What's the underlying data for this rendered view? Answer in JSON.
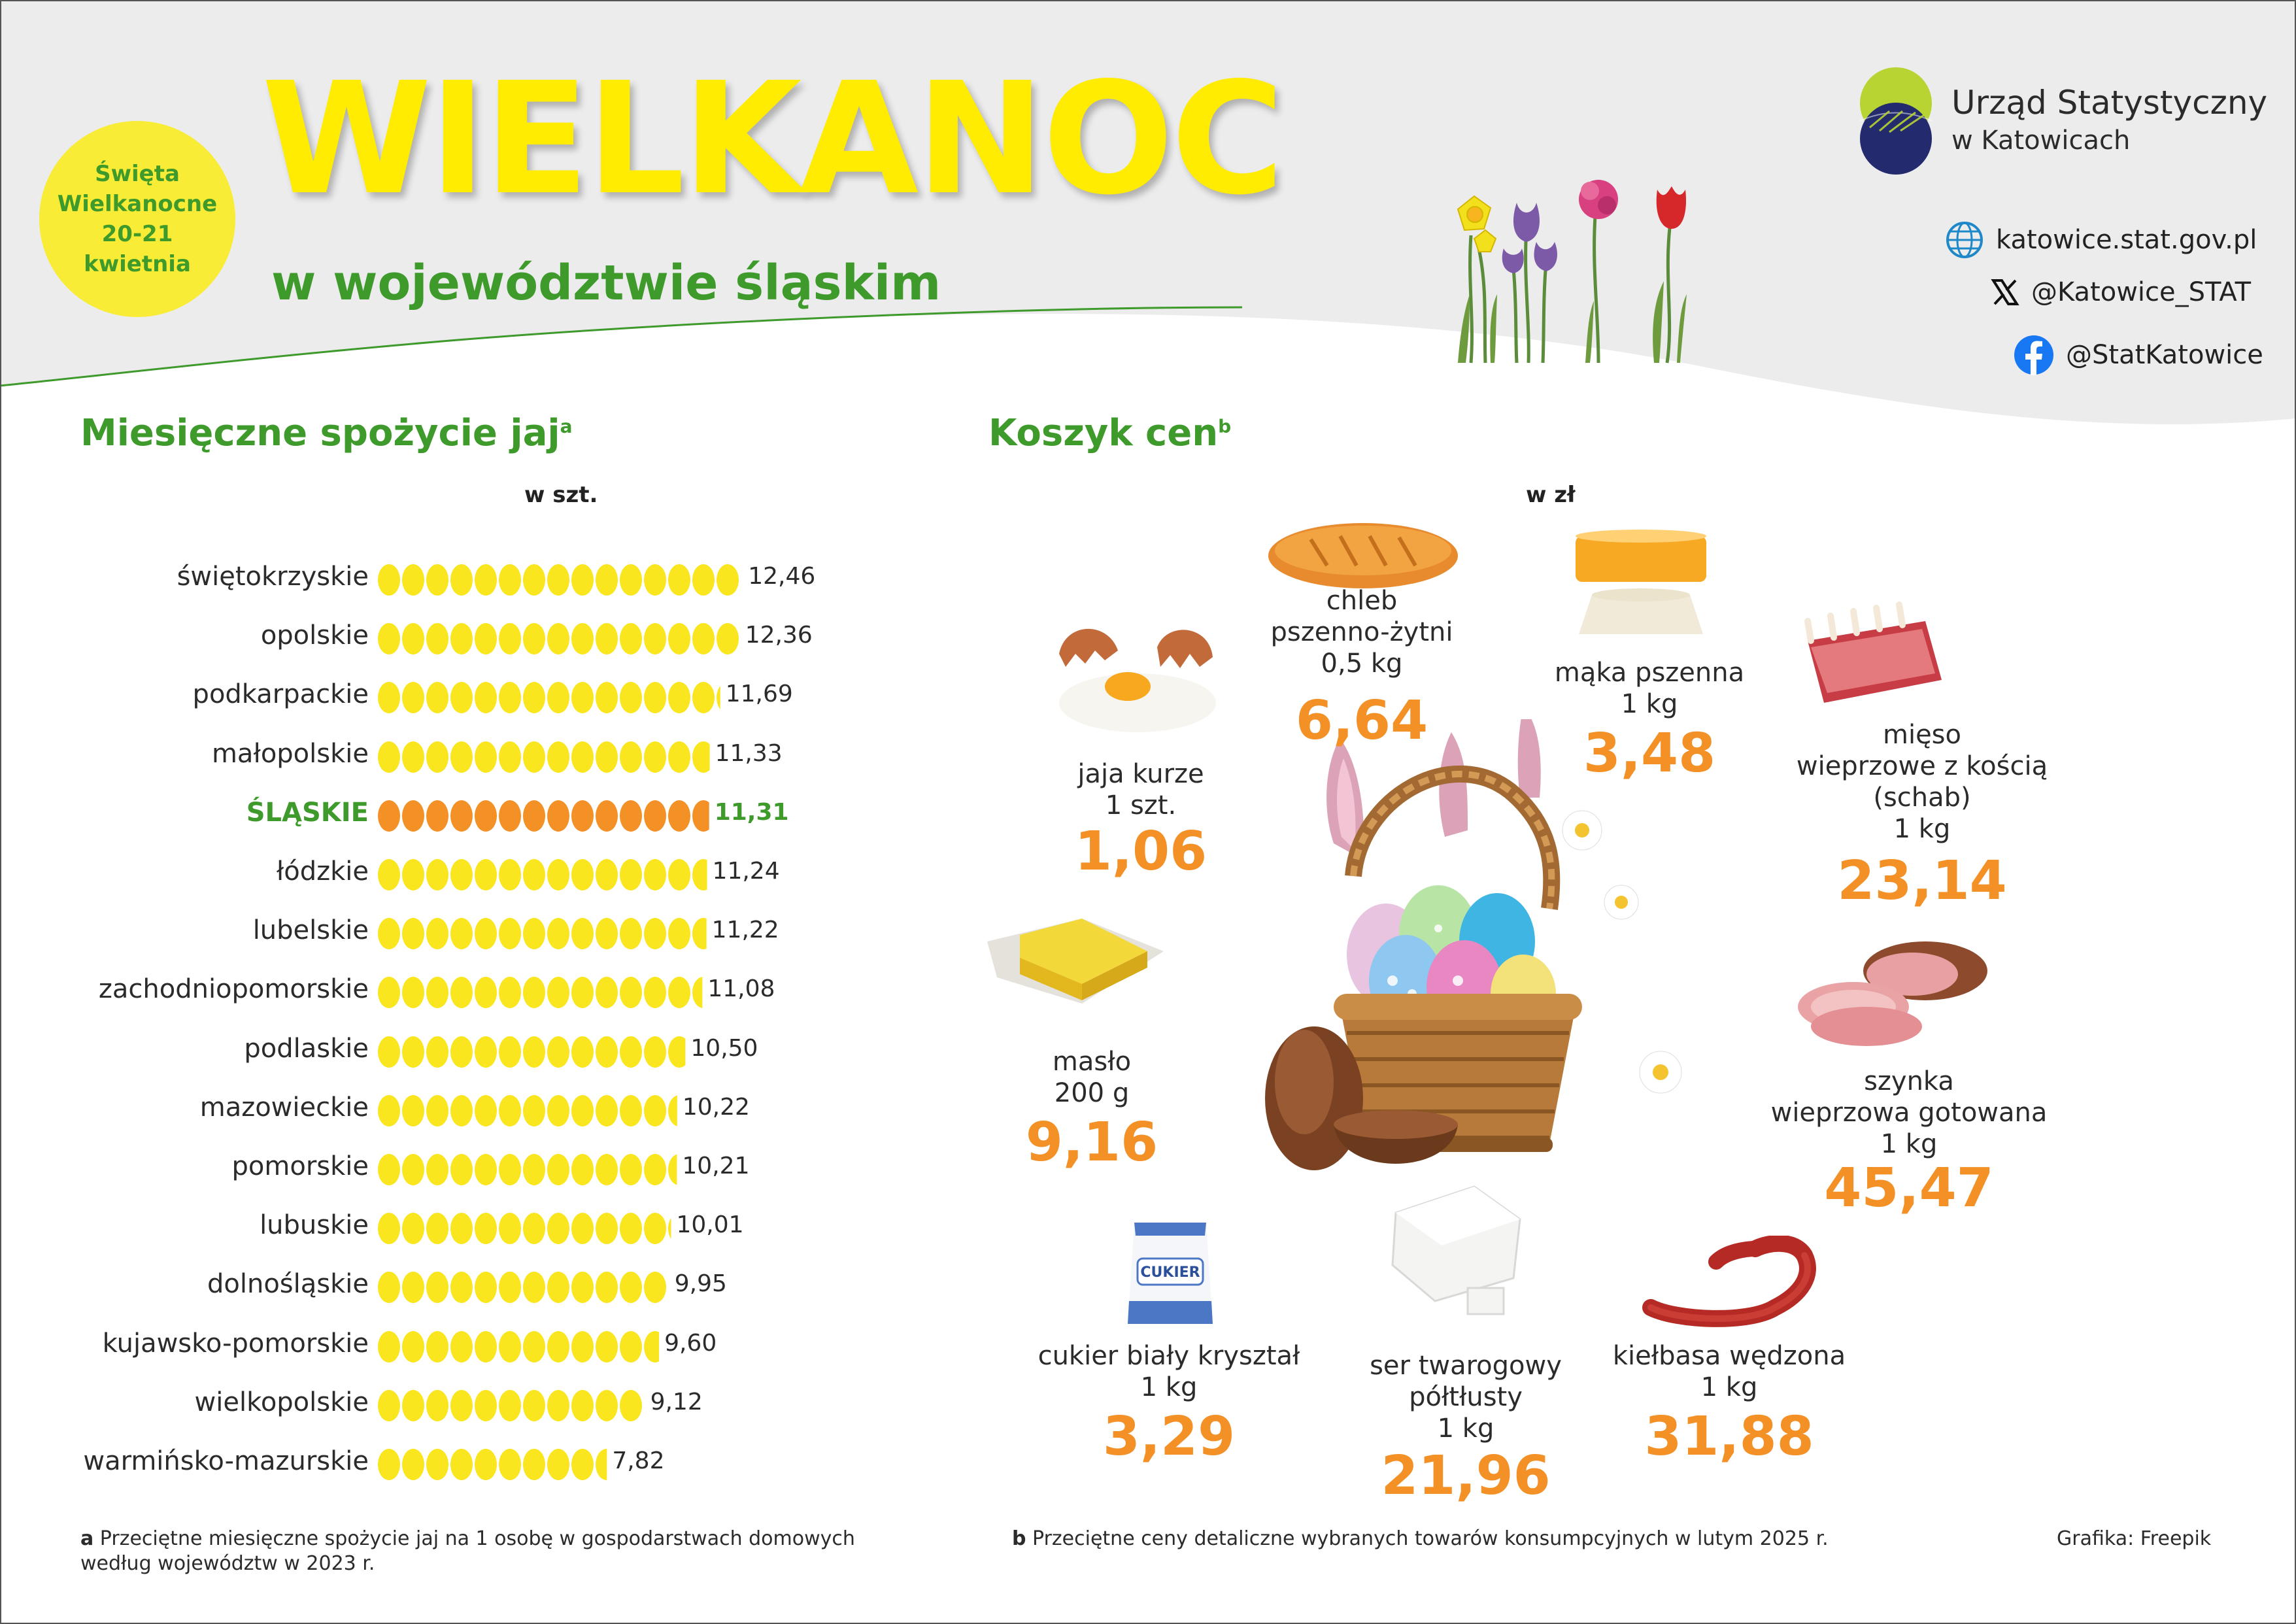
{
  "header": {
    "badge": {
      "line1": "Święta",
      "line2": "Wielkanocne",
      "line3": "20-21",
      "line4": "kwietnia"
    },
    "title": "WIELKANOC",
    "subtitle": "w województwie śląskim"
  },
  "org": {
    "name": "Urząd Statystyczny",
    "sub": "w Katowicach",
    "website": "katowice.stat.gov.pl",
    "x_handle": "@Katowice_STAT",
    "facebook": "@StatKatowice"
  },
  "eggs_section": {
    "title": "Miesięczne spożycie jaj",
    "title_sup": "a",
    "unit": "w szt."
  },
  "basket_section": {
    "title": "Koszyk cen",
    "title_sup": "b",
    "unit": "w zł"
  },
  "chart_data": [
    {
      "type": "bar",
      "title": "Miesięczne spożycie jaj",
      "unit": "w szt.",
      "highlight": "ŚLĄSKIE",
      "colors": {
        "egg": "#f9e61e",
        "highlight": "#f39026"
      },
      "categories": [
        "świętokrzyskie",
        "opolskie",
        "podkarpackie",
        "małopolskie",
        "ŚLĄSKIE",
        "łódzkie",
        "lubelskie",
        "zachodniopomorskie",
        "podlaskie",
        "mazowieckie",
        "pomorskie",
        "lubuskie",
        "dolnośląskie",
        "kujawsko-pomorskie",
        "wielkopolskie",
        "warmińsko-mazurskie"
      ],
      "values": [
        12.46,
        12.36,
        11.69,
        11.33,
        11.31,
        11.24,
        11.22,
        11.08,
        10.5,
        10.22,
        10.21,
        10.01,
        9.95,
        9.6,
        9.12,
        7.82
      ],
      "labels": [
        "12,46",
        "12,36",
        "11,69",
        "11,33",
        "11,31",
        "11,24",
        "11,22",
        "11,08",
        "10,50",
        "10,22",
        "10,21",
        "10,01",
        "9,95",
        "9,60",
        "9,12",
        "7,82"
      ]
    },
    {
      "type": "table",
      "title": "Koszyk cen",
      "unit": "w zł",
      "items": [
        {
          "name": "chleb pszenno-żytni",
          "lines": [
            "chleb",
            "pszenno-żytni",
            "0,5 kg"
          ],
          "price": "6,64"
        },
        {
          "name": "mąka pszenna",
          "lines": [
            "mąka pszenna",
            "1 kg"
          ],
          "price": "3,48"
        },
        {
          "name": "jaja kurze",
          "lines": [
            "jaja kurze",
            "1 szt."
          ],
          "price": "1,06"
        },
        {
          "name": "mięso wieprzowe z kością (schab)",
          "lines": [
            "mięso",
            "wieprzowe z kością",
            "(schab)",
            "1 kg"
          ],
          "price": "23,14"
        },
        {
          "name": "masło",
          "lines": [
            "masło",
            "200 g"
          ],
          "price": "9,16"
        },
        {
          "name": "szynka wieprzowa gotowana",
          "lines": [
            "szynka",
            "wieprzowa gotowana",
            "1 kg"
          ],
          "price": "45,47"
        },
        {
          "name": "cukier biały kryształ",
          "lines": [
            "cukier biały kryształ",
            "1 kg"
          ],
          "price": "3,29"
        },
        {
          "name": "ser twarogowy półtłusty",
          "lines": [
            "ser twarogowy",
            "półtłusty",
            "1 kg"
          ],
          "price": "21,96"
        },
        {
          "name": "kiełbasa wędzona",
          "lines": [
            "kiełbasa wędzona",
            "1 kg"
          ],
          "price": "31,88"
        }
      ]
    }
  ],
  "sugar_pack_label": "CUKIER",
  "footnotes": {
    "a_marker": "a",
    "a_text": "Przeciętne miesięczne spożycie jaj na 1 osobę w gospodarstwach domowych",
    "a_text2": "według województw w 2023 r.",
    "b_marker": "b",
    "b_text": "Przeciętne ceny detaliczne wybranych towarów konsumpcyjnych w lutym 2025 r.",
    "credit": "Grafika: Freepik"
  }
}
